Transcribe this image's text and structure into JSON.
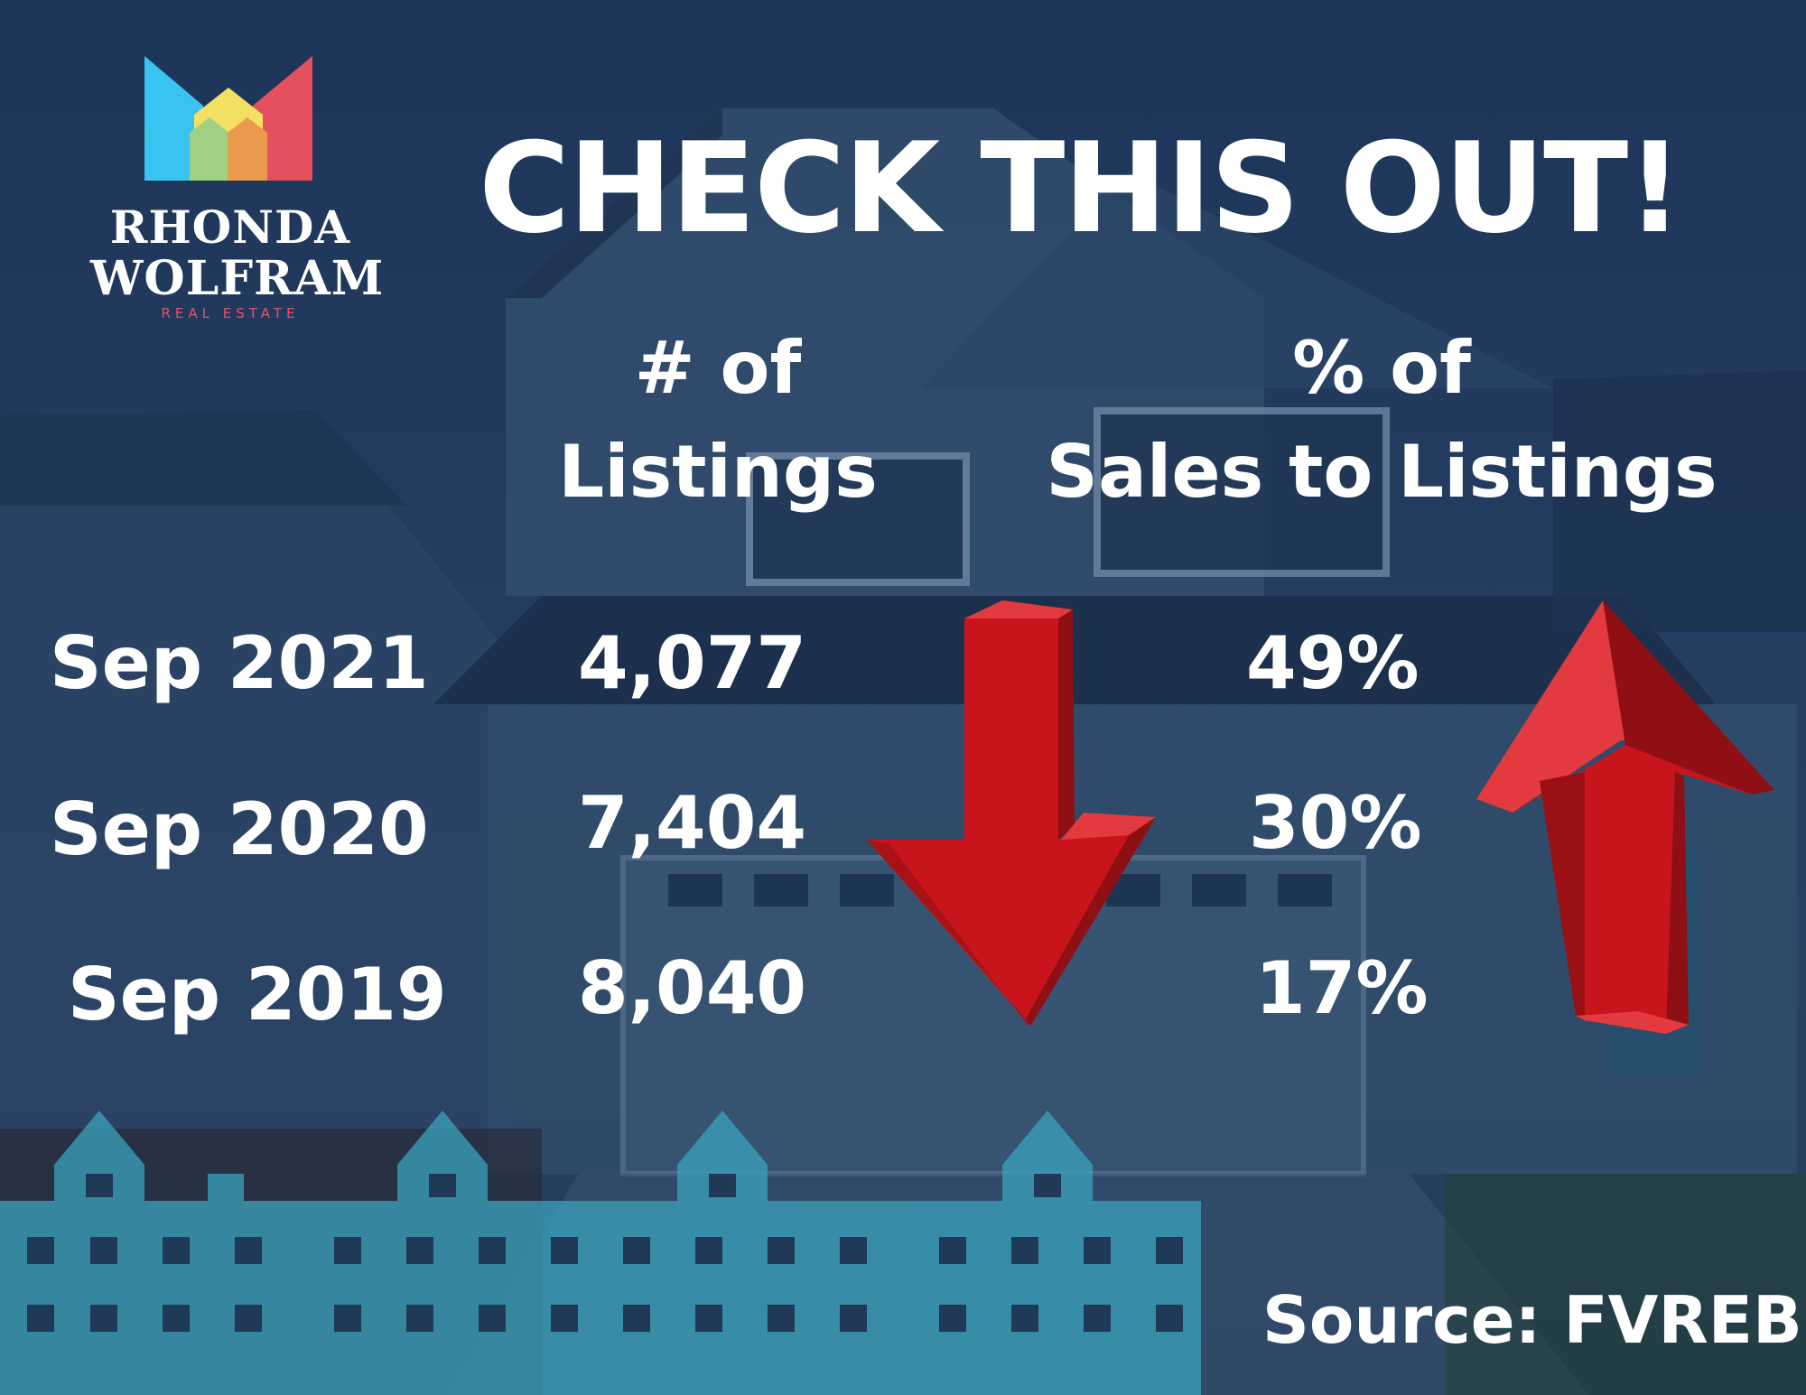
{
  "brand": {
    "name_line1": "RHONDA",
    "name_line2": "WOLFRAM",
    "tagline": "REAL ESTATE"
  },
  "headline": "CHECK THIS OUT!",
  "columns": {
    "listings_line1": "# of",
    "listings_line2": "Listings",
    "ratio_line1": "% of",
    "ratio_line2": "Sales to Listings"
  },
  "rows": [
    {
      "period": "Sep 2021",
      "listings": "4,077",
      "ratio": "49%"
    },
    {
      "period": "Sep 2020",
      "listings": "7,404",
      "ratio": "30%"
    },
    {
      "period": "Sep 2019",
      "listings": "8,040",
      "ratio": "17%"
    }
  ],
  "trends": {
    "listings": "down-arrow-icon",
    "ratio": "up-arrow-icon"
  },
  "source": "Source: FVREB",
  "colors": {
    "background": "#1e3557",
    "arrow": "#c8151b",
    "skyline": "#3a9fb8",
    "logo_pink": "#e05663"
  }
}
